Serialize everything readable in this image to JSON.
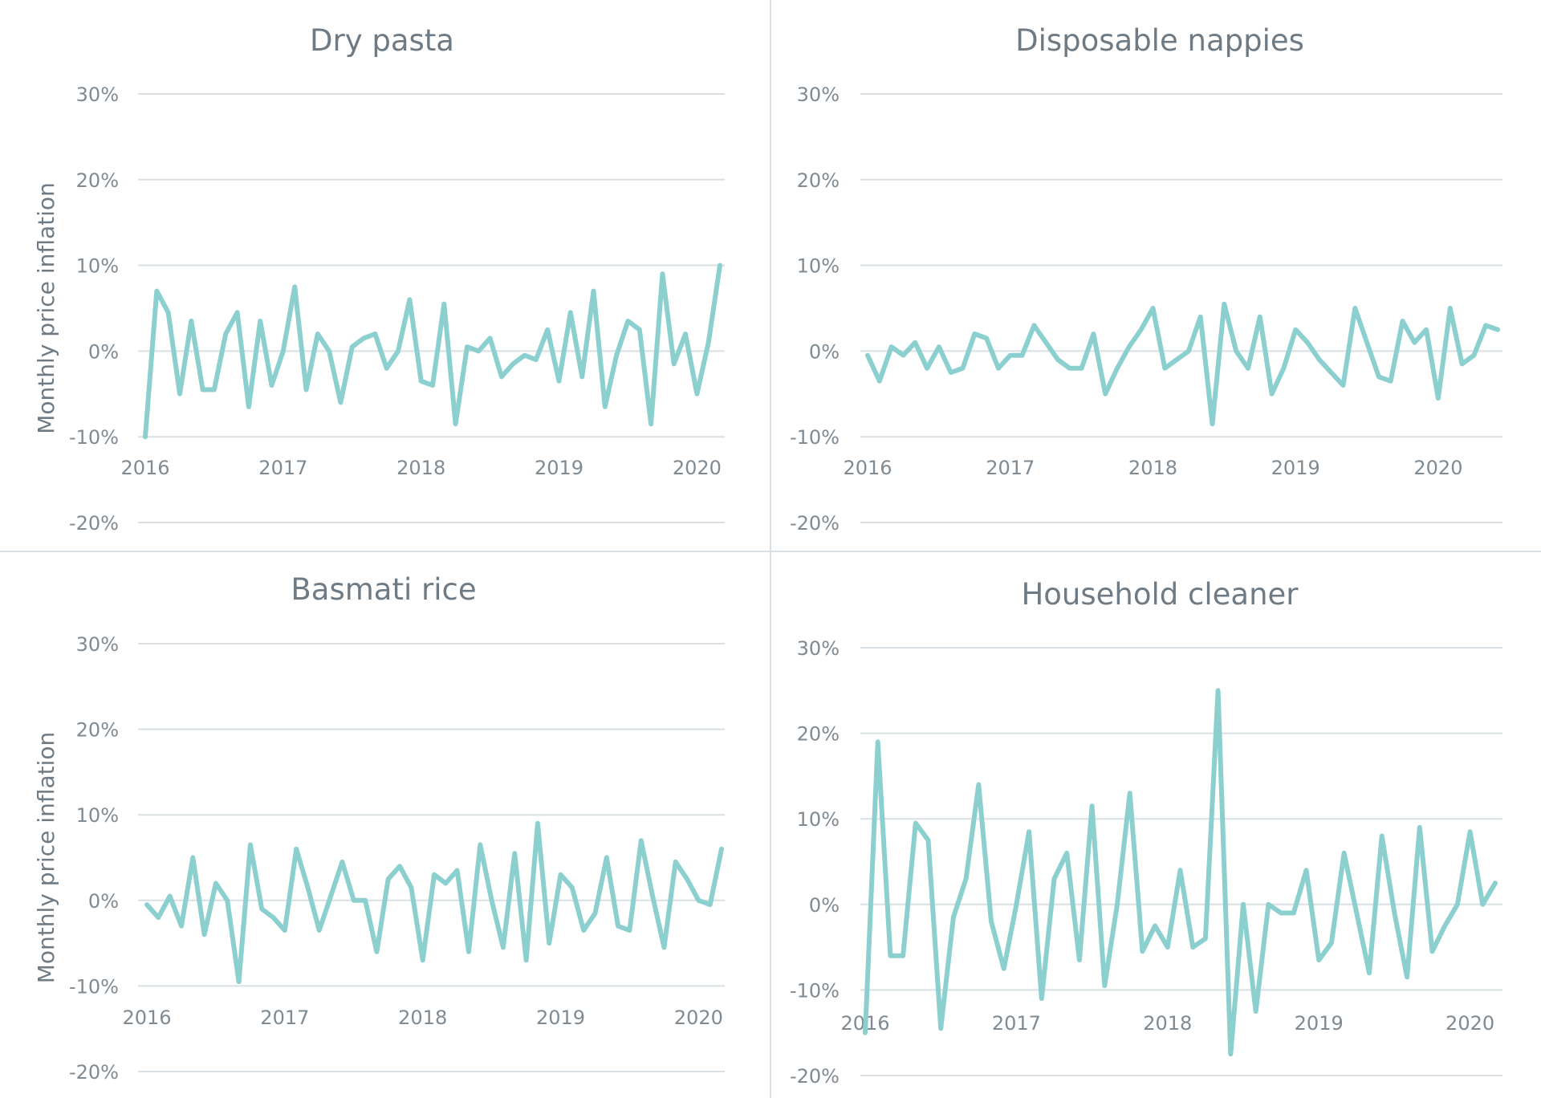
{
  "colors": {
    "line": "#8ccfcf",
    "grid": "#d9dfe3",
    "text": "#6f7b84"
  },
  "chart_data": [
    {
      "type": "line",
      "title": "Dry pasta",
      "ylabel": "Monthly price inflation",
      "x_ticks": [
        "2016",
        "2017",
        "2018",
        "2019",
        "2020"
      ],
      "y_ticks": [
        "-20%",
        "-10%",
        "0%",
        "10%",
        "20%",
        "30%"
      ],
      "ylim": [
        -20,
        30
      ],
      "start": "2016-01",
      "series": [
        {
          "values": [
            -10,
            7,
            4.5,
            -5,
            3.5,
            -4.5,
            -4.5,
            2,
            4.5,
            -6.5,
            3.5,
            -4,
            0,
            7.5,
            -4.5,
            2,
            0,
            -6,
            0.5,
            1.5,
            2,
            -2,
            0,
            6,
            -3.5,
            -4,
            5.5,
            -8.5,
            0.5,
            0,
            1.5,
            -3,
            -1.5,
            -0.5,
            -1,
            2.5,
            -3.5,
            4.5,
            -3,
            7,
            -6.5,
            -0.5,
            3.5,
            2.5,
            -8.5,
            9,
            -1.5,
            2,
            -5,
            1,
            10
          ]
        }
      ]
    },
    {
      "type": "line",
      "title": "Disposable nappies",
      "ylabel": "",
      "x_ticks": [
        "2016",
        "2017",
        "2018",
        "2019",
        "2020"
      ],
      "y_ticks": [
        "-20%",
        "-10%",
        "0%",
        "10%",
        "20%",
        "30%"
      ],
      "ylim": [
        -20,
        30
      ],
      "start": "2016-01",
      "series": [
        {
          "values": [
            -0.5,
            -3.5,
            0.5,
            -0.5,
            1,
            -2,
            0.5,
            -2.5,
            -2,
            2,
            1.5,
            -2,
            -0.5,
            -0.5,
            3,
            1,
            -1,
            -2,
            -2,
            2,
            -5,
            -2,
            0.5,
            2.5,
            5,
            -2,
            -1,
            0,
            4,
            -8.5,
            5.5,
            0,
            -2,
            4,
            -5,
            -2,
            2.5,
            1,
            -1,
            -2.5,
            -4,
            5,
            1,
            -3,
            -3.5,
            3.5,
            1,
            2.5,
            -5.5,
            5,
            -1.5,
            -0.5,
            3,
            2.5
          ]
        }
      ]
    },
    {
      "type": "line",
      "title": "Basmati rice",
      "ylabel": "Monthly price inflation",
      "x_ticks": [
        "2016",
        "2017",
        "2018",
        "2019",
        "2020"
      ],
      "y_ticks": [
        "-20%",
        "-10%",
        "0%",
        "10%",
        "20%",
        "30%"
      ],
      "ylim": [
        -20,
        30
      ],
      "start": "2016-01",
      "series": [
        {
          "values": [
            -0.5,
            -2,
            0.5,
            -3,
            5,
            -4,
            2,
            0,
            -9.5,
            6.5,
            -1,
            -2,
            -3.5,
            6,
            1.5,
            -3.5,
            0.5,
            4.5,
            0,
            0,
            -6,
            2.5,
            4,
            1.5,
            -7,
            3,
            2,
            3.5,
            -6,
            6.5,
            0,
            -5.5,
            5.5,
            -7,
            9,
            -5,
            3,
            1.5,
            -3.5,
            -1.5,
            5,
            -3,
            -3.5,
            7,
            0.5,
            -5.5,
            4.5,
            2.5,
            0,
            -0.5,
            6
          ]
        }
      ]
    },
    {
      "type": "line",
      "title": "Household cleaner",
      "ylabel": "",
      "x_ticks": [
        "2016",
        "2017",
        "2018",
        "2019",
        "2020"
      ],
      "y_ticks": [
        "-20%",
        "-10%",
        "0%",
        "10%",
        "20%",
        "30%"
      ],
      "ylim": [
        -20,
        30
      ],
      "start": "2016-01",
      "series": [
        {
          "values": [
            -15,
            19,
            -6,
            -6,
            9.5,
            7.5,
            -14.5,
            -1.5,
            3,
            14,
            -2,
            -7.5,
            0,
            8.5,
            -11,
            3,
            6,
            -6.5,
            11.5,
            -9.5,
            0,
            13,
            -5.5,
            -2.5,
            -5,
            4,
            -5,
            -4,
            25,
            -17.5,
            0,
            -12.5,
            0,
            -1,
            -1,
            4,
            -6.5,
            -4.5,
            6,
            -1,
            -8,
            8,
            -1,
            -8.5,
            9,
            -5.5,
            -2.5,
            0,
            8.5,
            0,
            2.5
          ]
        }
      ]
    }
  ]
}
